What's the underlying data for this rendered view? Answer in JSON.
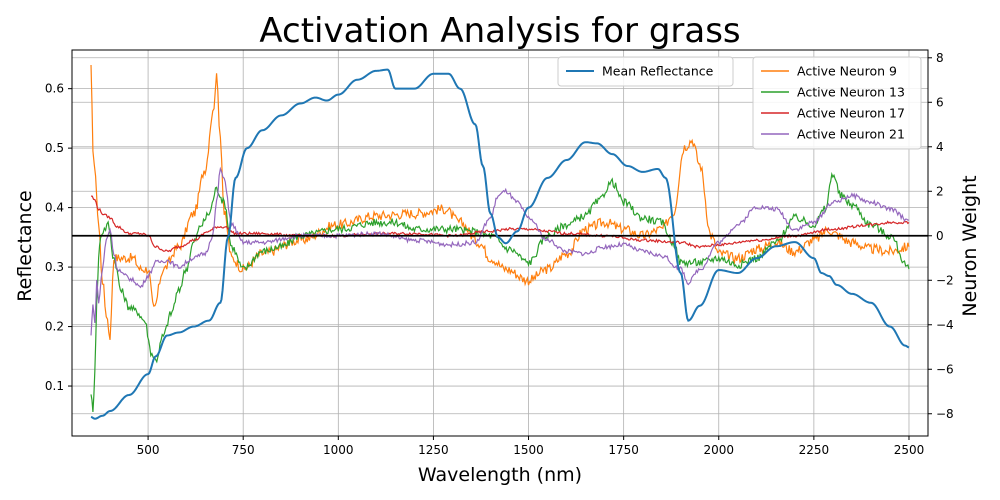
{
  "chart_data": {
    "type": "line",
    "title": "Activation Analysis for grass",
    "xlabel": "Wavelength (nm)",
    "ylabel_left": "Reflectance",
    "ylabel_right": "Neuron Weight",
    "xlim": [
      300,
      2550
    ],
    "ylim_left": [
      0.016,
      0.665
    ],
    "ylim_right": [
      -9.0,
      8.35
    ],
    "x_ticks": [
      500,
      750,
      1000,
      1250,
      1500,
      1750,
      2000,
      2250,
      2500
    ],
    "y_left_ticks": [
      0.1,
      0.2,
      0.3,
      0.4,
      0.5,
      0.6
    ],
    "y_right_ticks": [
      -8,
      -6,
      -4,
      -2,
      0,
      2,
      4,
      6,
      8
    ],
    "grid": true,
    "zero_line_right": 0,
    "legend_left": {
      "placement": "top-center",
      "entries": [
        "Mean Reflectance"
      ]
    },
    "legend_right": {
      "placement": "top-right",
      "entries": [
        "Active Neuron 9",
        "Active Neuron 13",
        "Active Neuron 17",
        "Active Neuron 21"
      ]
    },
    "mean_reflectance": {
      "name": "Mean Reflectance",
      "axis": "left",
      "color": "#1f77b4",
      "x": [
        350,
        360,
        380,
        400,
        450,
        500,
        520,
        550,
        580,
        620,
        660,
        690,
        710,
        730,
        760,
        800,
        850,
        900,
        940,
        970,
        1000,
        1050,
        1100,
        1130,
        1150,
        1200,
        1250,
        1290,
        1320,
        1360,
        1380,
        1400,
        1420,
        1440,
        1470,
        1500,
        1550,
        1600,
        1650,
        1680,
        1720,
        1760,
        1800,
        1840,
        1860,
        1900,
        1920,
        1950,
        2000,
        2050,
        2100,
        2150,
        2200,
        2250,
        2270,
        2290,
        2310,
        2350,
        2400,
        2450,
        2490,
        2500
      ],
      "values": [
        0.048,
        0.045,
        0.05,
        0.058,
        0.085,
        0.12,
        0.15,
        0.185,
        0.19,
        0.2,
        0.21,
        0.24,
        0.35,
        0.45,
        0.5,
        0.53,
        0.555,
        0.575,
        0.585,
        0.58,
        0.59,
        0.615,
        0.63,
        0.632,
        0.6,
        0.6,
        0.625,
        0.625,
        0.6,
        0.54,
        0.47,
        0.39,
        0.35,
        0.34,
        0.36,
        0.4,
        0.45,
        0.48,
        0.51,
        0.508,
        0.49,
        0.47,
        0.46,
        0.465,
        0.45,
        0.29,
        0.21,
        0.235,
        0.295,
        0.29,
        0.315,
        0.335,
        0.342,
        0.315,
        0.29,
        0.285,
        0.27,
        0.255,
        0.24,
        0.2,
        0.168,
        0.165
      ]
    },
    "series": [
      {
        "name": "Active Neuron 9",
        "axis": "right",
        "color": "#ff7f0e",
        "x": [
          350,
          355,
          362,
          370,
          380,
          390,
          400,
          410,
          430,
          460,
          480,
          500,
          515,
          540,
          580,
          620,
          650,
          670,
          680,
          690,
          700,
          720,
          750,
          800,
          900,
          1000,
          1100,
          1200,
          1280,
          1320,
          1370,
          1400,
          1440,
          1500,
          1550,
          1600,
          1650,
          1700,
          1750,
          1800,
          1850,
          1880,
          1910,
          1930,
          1950,
          1980,
          2000,
          2050,
          2100,
          2150,
          2200,
          2250,
          2290,
          2300,
          2350,
          2400,
          2450,
          2500
        ],
        "values": [
          7.5,
          4.0,
          2.5,
          0.5,
          -2.0,
          -3.5,
          -4.5,
          -1.0,
          -1.0,
          -1.0,
          -1.5,
          -1.5,
          -3.3,
          -1.5,
          -0.5,
          1.0,
          3.0,
          5.5,
          7.1,
          4.5,
          1.0,
          -1.0,
          -1.5,
          -0.8,
          -0.2,
          0.5,
          0.9,
          1.0,
          1.2,
          0.6,
          -0.3,
          -1.0,
          -1.5,
          -2.0,
          -1.5,
          -0.8,
          0.3,
          0.6,
          0.3,
          0.0,
          0.3,
          1.0,
          4.0,
          4.3,
          3.2,
          0.0,
          -0.8,
          -1.0,
          -0.6,
          -0.3,
          -0.7,
          -0.2,
          0.3,
          0.1,
          -0.3,
          -0.6,
          -0.7,
          -0.5
        ]
      },
      {
        "name": "Active Neuron 13",
        "axis": "right",
        "color": "#2ca02c",
        "x": [
          350,
          355,
          360,
          365,
          370,
          375,
          385,
          395,
          410,
          430,
          450,
          470,
          490,
          510,
          520,
          540,
          560,
          580,
          600,
          620,
          640,
          660,
          680,
          700,
          720,
          750,
          800,
          850,
          900,
          1000,
          1100,
          1150,
          1200,
          1300,
          1350,
          1400,
          1450,
          1500,
          1550,
          1600,
          1650,
          1680,
          1720,
          1750,
          1800,
          1850,
          1880,
          1900,
          1950,
          2000,
          2050,
          2100,
          2150,
          2200,
          2250,
          2280,
          2300,
          2320,
          2350,
          2400,
          2450,
          2500
        ],
        "values": [
          -7.0,
          -8.0,
          -6.0,
          -3.0,
          -1.0,
          0.0,
          0.3,
          0.5,
          -1.0,
          -2.5,
          -3.2,
          -3.4,
          -3.8,
          -5.3,
          -5.6,
          -4.5,
          -3.5,
          -2.5,
          -1.5,
          -0.3,
          0.5,
          1.0,
          2.1,
          1.5,
          -0.5,
          -1.5,
          -0.7,
          -0.5,
          0.0,
          0.3,
          0.6,
          0.6,
          0.3,
          0.3,
          0.2,
          0.0,
          -0.6,
          -1.2,
          0.0,
          0.5,
          0.9,
          1.5,
          2.4,
          1.5,
          0.8,
          0.6,
          -0.3,
          -1.2,
          -1.2,
          -1.0,
          -1.3,
          -1.0,
          -0.3,
          0.8,
          0.5,
          1.2,
          2.8,
          1.8,
          1.4,
          0.5,
          0.0,
          -1.5
        ]
      },
      {
        "name": "Active Neuron 17",
        "axis": "right",
        "color": "#d62728",
        "x": [
          350,
          360,
          370,
          380,
          390,
          400,
          420,
          450,
          480,
          500,
          520,
          550,
          580,
          620,
          660,
          680,
          700,
          730,
          800,
          900,
          1000,
          1100,
          1200,
          1300,
          1400,
          1450,
          1500,
          1550,
          1600,
          1700,
          1800,
          1900,
          1950,
          2000,
          2100,
          2200,
          2300,
          2400,
          2450,
          2500
        ],
        "values": [
          1.8,
          1.6,
          1.2,
          1.0,
          0.9,
          0.8,
          0.4,
          0.1,
          0.1,
          0.0,
          -0.5,
          -0.7,
          -0.5,
          -0.2,
          0.2,
          0.4,
          0.4,
          0.1,
          0.1,
          0.0,
          0.0,
          0.1,
          0.1,
          0.0,
          0.2,
          0.3,
          0.3,
          0.2,
          0.1,
          0.0,
          -0.2,
          -0.3,
          -0.5,
          -0.4,
          -0.2,
          0.0,
          0.3,
          0.5,
          0.6,
          0.6
        ]
      },
      {
        "name": "Active Neuron 21",
        "axis": "right",
        "color": "#9467bd",
        "x": [
          350,
          355,
          360,
          365,
          370,
          380,
          390,
          400,
          410,
          420,
          440,
          460,
          480,
          500,
          520,
          550,
          580,
          620,
          650,
          670,
          680,
          690,
          700,
          720,
          750,
          800,
          900,
          1000,
          1100,
          1200,
          1300,
          1360,
          1400,
          1420,
          1440,
          1470,
          1500,
          1550,
          1600,
          1650,
          1700,
          1750,
          1800,
          1850,
          1900,
          1920,
          1950,
          2000,
          2050,
          2100,
          2150,
          2200,
          2250,
          2300,
          2350,
          2400,
          2450,
          2500
        ],
        "values": [
          -4.5,
          -3.0,
          -4.0,
          -2.0,
          -3.0,
          -1.5,
          -0.2,
          0.3,
          -0.8,
          -1.5,
          -1.8,
          -2.0,
          -2.3,
          -1.8,
          -1.2,
          -1.1,
          -1.4,
          -1.0,
          -0.8,
          0.0,
          1.5,
          3.0,
          2.5,
          0.5,
          -0.3,
          -0.3,
          0.0,
          0.0,
          0.1,
          -0.2,
          -0.4,
          -0.3,
          0.8,
          1.8,
          2.0,
          1.5,
          0.8,
          -0.2,
          -0.7,
          -0.8,
          -0.5,
          -0.4,
          -0.7,
          -0.9,
          -1.5,
          -2.1,
          -1.5,
          -0.3,
          0.5,
          1.3,
          1.2,
          0.3,
          0.6,
          1.5,
          1.8,
          1.5,
          1.2,
          0.7
        ]
      }
    ]
  }
}
